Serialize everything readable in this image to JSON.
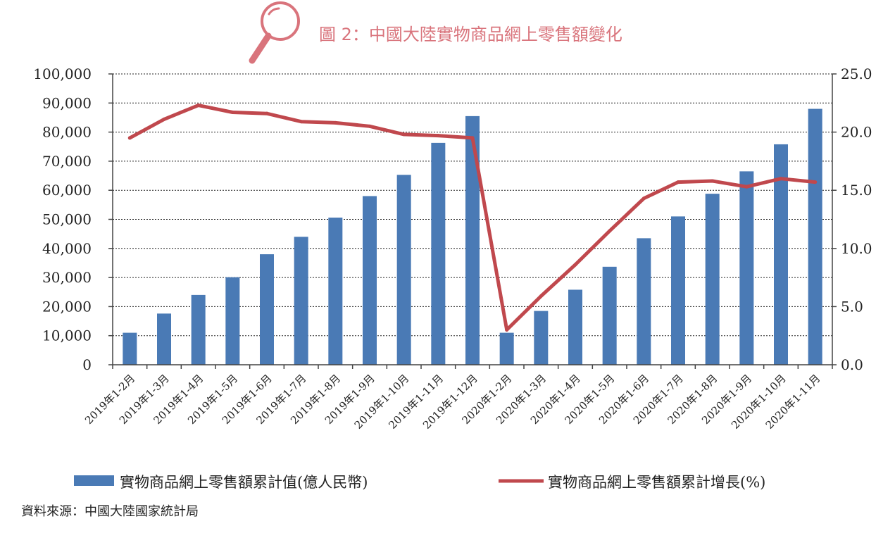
{
  "title": "圖 2：中國大陸實物商品網上零售額變化",
  "source": "資料來源：中國大陸國家統計局",
  "colors": {
    "bar": "#4a7ab5",
    "line": "#c0484d",
    "title": "#d9747c",
    "axis": "#444444",
    "grid": "#222222"
  },
  "icons": {
    "title_icon": "magnifier-icon"
  },
  "chart_data": {
    "type": "bar",
    "categories": [
      "2019年1-2月",
      "2019年1-3月",
      "2019年1-4月",
      "2019年1-5月",
      "2019年1-6月",
      "2019年1-7月",
      "2019年1-8月",
      "2019年1-9月",
      "2019年1-10月",
      "2019年1-11月",
      "2019年1-12月",
      "2020年1-2月",
      "2020年1-3月",
      "2020年1-4月",
      "2020年1-5月",
      "2020年1-6月",
      "2020年1-7月",
      "2020年1-8月",
      "2020年1-9月",
      "2020年1-10月",
      "2020年1-11月"
    ],
    "series": [
      {
        "name": "實物商品網上零售額累計值(億人民幣)",
        "type": "bar",
        "axis": "left",
        "values": [
          11000,
          17600,
          24000,
          30100,
          38000,
          44000,
          50600,
          58000,
          65300,
          76300,
          85500,
          11000,
          18500,
          25800,
          33700,
          43500,
          51000,
          58800,
          66500,
          75800,
          88000
        ]
      },
      {
        "name": "實物商品網上零售額累計增長(%)",
        "type": "line",
        "axis": "right",
        "values": [
          19.5,
          21.1,
          22.3,
          21.7,
          21.6,
          20.9,
          20.8,
          20.5,
          19.8,
          19.7,
          19.5,
          3.0,
          5.9,
          8.6,
          11.5,
          14.3,
          15.7,
          15.8,
          15.3,
          16.0,
          15.7
        ]
      }
    ],
    "left_axis": {
      "ylim": [
        0,
        100000
      ],
      "ticks": [
        "0",
        "10,000",
        "20,000",
        "30,000",
        "40,000",
        "50,000",
        "60,000",
        "70,000",
        "80,000",
        "90,000",
        "100,000"
      ]
    },
    "right_axis": {
      "ylim": [
        0,
        25
      ],
      "ticks": [
        "0.0",
        "5.0",
        "10.0",
        "15.0",
        "20.0",
        "25.0"
      ]
    },
    "grid": true,
    "legend_position": "bottom"
  }
}
